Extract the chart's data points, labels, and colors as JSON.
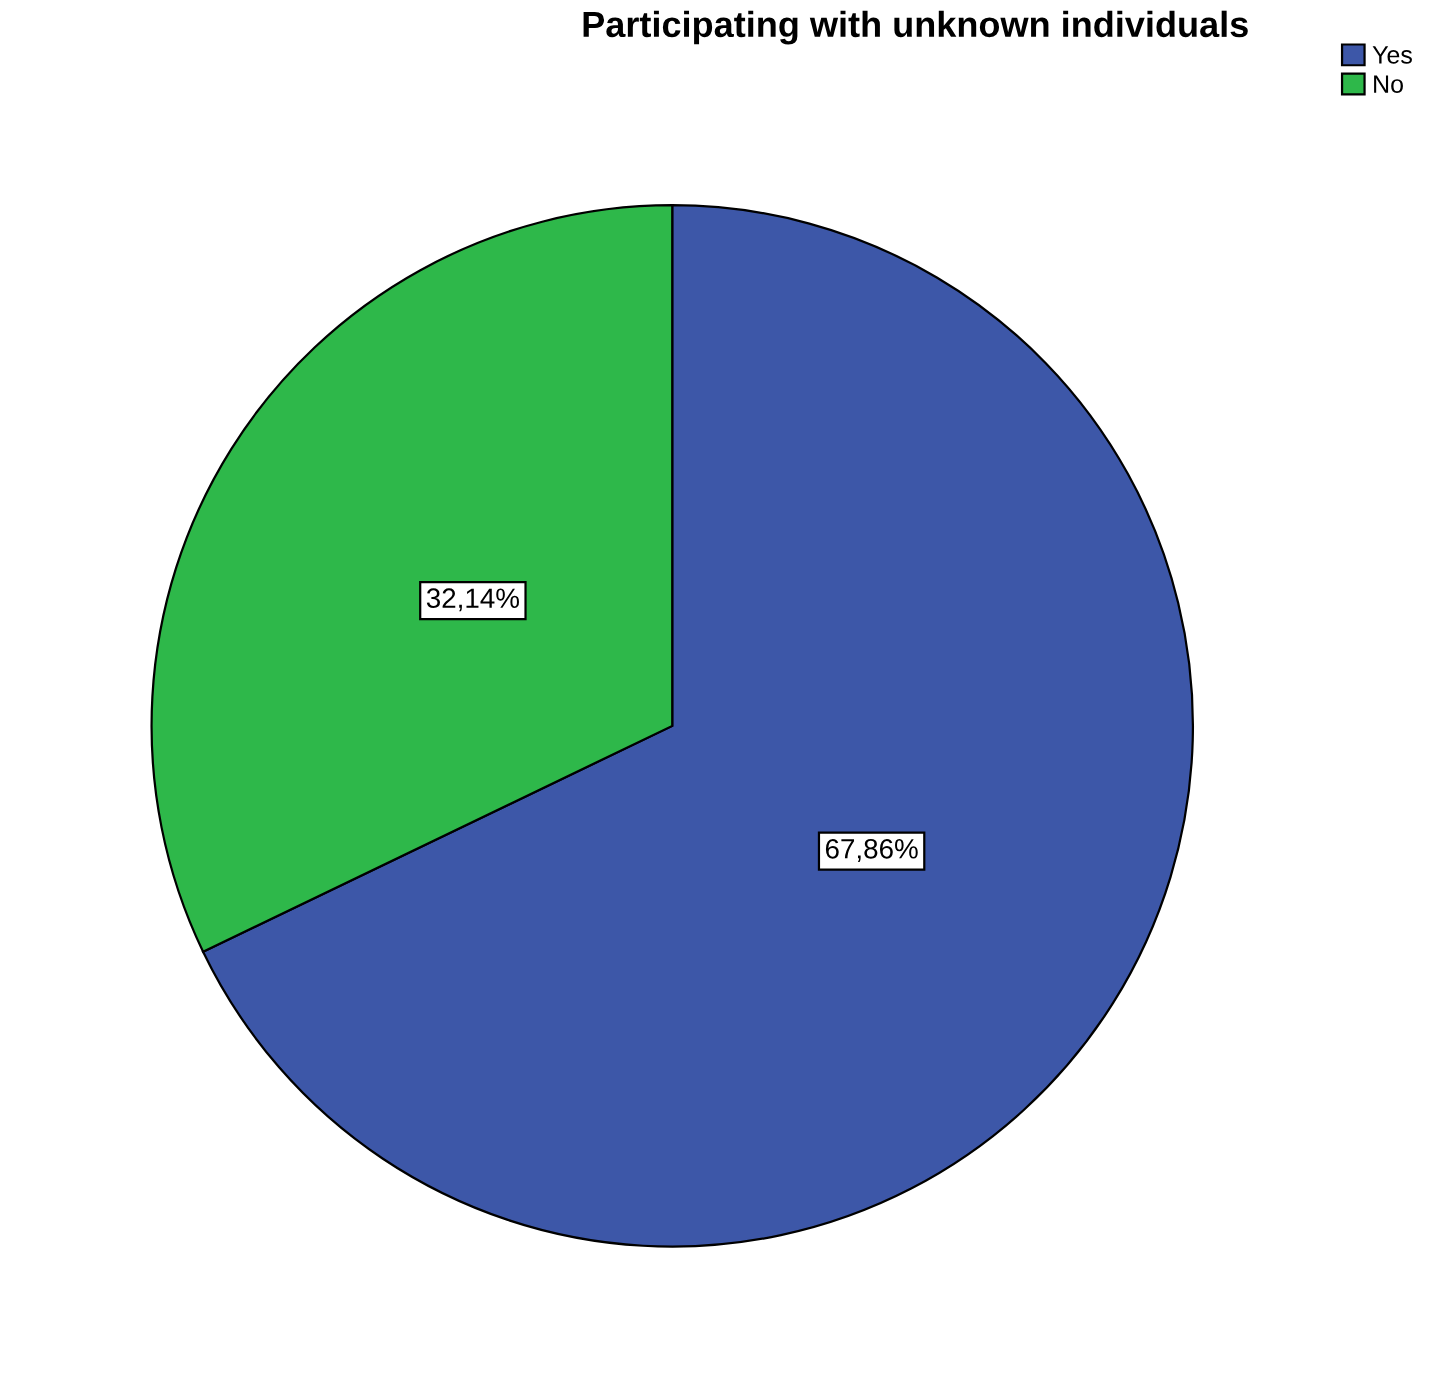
{
  "chart_data": {
    "type": "pie",
    "title": "Participating with unknown individuals",
    "categories": [
      "Yes",
      "No"
    ],
    "values": [
      67.86,
      32.14
    ],
    "value_labels": [
      "67,86%",
      "32,14%"
    ],
    "colors": [
      "#3d57a8",
      "#2eb84a"
    ],
    "legend": "top right"
  }
}
